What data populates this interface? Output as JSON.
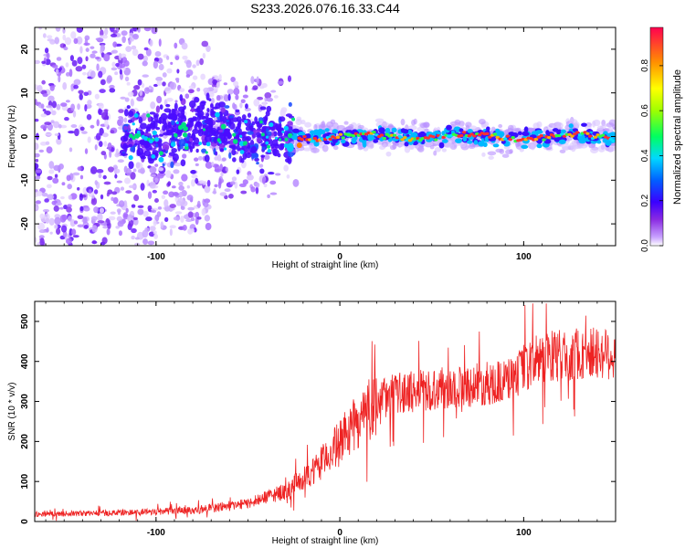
{
  "title": "S233.2026.076.16.33.C44",
  "chart_data": [
    {
      "type": "heatmap",
      "title": "S233.2026.076.16.33.C44",
      "xlabel": "Height of straight line (km)",
      "ylabel": "Frequency (Hz)",
      "xlim": [
        -166,
        150
      ],
      "ylim": [
        -25,
        25
      ],
      "x_ticks": [
        -100,
        0,
        100
      ],
      "x_tick_labels": [
        "-100",
        "0",
        "100"
      ],
      "y_ticks": [
        -20,
        -10,
        0,
        10,
        20
      ],
      "y_tick_labels": [
        "-20",
        "-10",
        "0",
        "10",
        "20"
      ],
      "colorbar": {
        "label": "Normalized spectral amplitude",
        "range": [
          0,
          0.97
        ],
        "ticks": [
          0.0,
          0.2,
          0.4,
          0.6,
          0.8
        ],
        "tick_labels": [
          "0.0",
          "0.2",
          "0.4",
          "0.6",
          "0.8"
        ],
        "colormap": [
          "#ffffff",
          "#8a2be2",
          "#2a00ff",
          "#00c8ff",
          "#00ff40",
          "#ffff00",
          "#ff8000",
          "#ff0040"
        ]
      },
      "description_of_field": {
        "noise_region_km": [
          -166,
          -30
        ],
        "signal_onset_km": -25,
        "signal_band_hz": [
          -2,
          2
        ],
        "center_frequency_hz": 0
      }
    },
    {
      "type": "line",
      "xlabel": "Height of straight line (km)",
      "ylabel": "SNR (10 * v/v)",
      "xlim": [
        -166,
        150
      ],
      "ylim": [
        0,
        550
      ],
      "x_ticks": [
        -100,
        0,
        100
      ],
      "x_tick_labels": [
        "-100",
        "0",
        "100"
      ],
      "y_ticks": [
        0,
        100,
        200,
        300,
        400,
        500
      ],
      "y_tick_labels": [
        "0",
        "100",
        "200",
        "300",
        "400",
        "500"
      ],
      "series": [
        {
          "name": "SNR",
          "color": "#ee2222",
          "trend_x": [
            -166,
            -120,
            -80,
            -50,
            -30,
            -15,
            0,
            10,
            20,
            30,
            50,
            70,
            90,
            100,
            110,
            130,
            150
          ],
          "trend_y": [
            18,
            22,
            28,
            45,
            75,
            120,
            200,
            250,
            300,
            320,
            330,
            340,
            350,
            380,
            410,
            420,
            420
          ]
        }
      ]
    }
  ]
}
